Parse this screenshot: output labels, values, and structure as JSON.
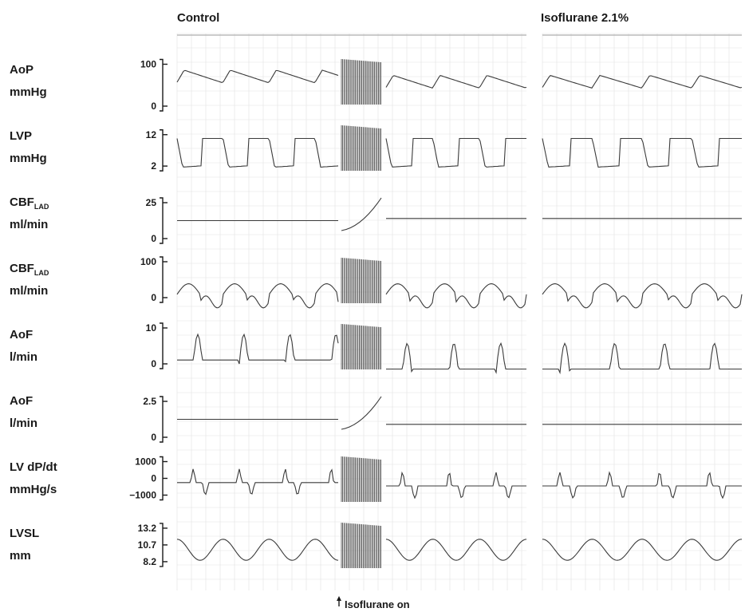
{
  "chart_data": {
    "type": "line",
    "panels": [
      {
        "title": "Control"
      },
      {
        "title": "Isoflurane 2.1%"
      }
    ],
    "annotation": "Isoflurane on",
    "channels": [
      {
        "label": "AoP",
        "subscript": "",
        "unit": "mmHg",
        "ticks": [
          "100",
          "0"
        ],
        "range": [
          0,
          120
        ],
        "control_level": 100,
        "iso_level": 75,
        "shape": "pressure"
      },
      {
        "label": "LVP",
        "subscript": "",
        "unit": "mmHg",
        "ticks": [
          "12",
          "2"
        ],
        "range": [
          0,
          16
        ],
        "control_level": 12,
        "iso_level": 12,
        "shape": "square"
      },
      {
        "label": "CBF",
        "subscript": "LAD",
        "unit": "ml/min",
        "ticks": [
          "25",
          "0"
        ],
        "range": [
          0,
          35
        ],
        "control_level": 25,
        "iso_level": 28,
        "shape": "flat"
      },
      {
        "label": "CBF",
        "subscript": "LAD",
        "unit": "ml/min",
        "ticks": [
          "100",
          "0"
        ],
        "range": [
          -20,
          120
        ],
        "control_level": 30,
        "iso_level": 30,
        "shape": "flow"
      },
      {
        "label": "AoF",
        "subscript": "",
        "unit": "l/min",
        "ticks": [
          "10",
          "0"
        ],
        "range": [
          -2,
          12
        ],
        "control_level": 10,
        "iso_level": 5,
        "shape": "spike"
      },
      {
        "label": "AoF",
        "subscript": "",
        "unit": "l/min",
        "ticks": [
          "2.5",
          "0"
        ],
        "range": [
          0,
          3.5
        ],
        "control_level": 2.5,
        "iso_level": 1.8,
        "shape": "flat"
      },
      {
        "label": "LV dP/dt",
        "subscript": "",
        "unit": "mmHg/s",
        "ticks": [
          "1000",
          "0",
          "−1000"
        ],
        "range": [
          -1500,
          1500
        ],
        "control_level": 1000,
        "iso_level": 600,
        "shape": "biphasic"
      },
      {
        "label": "LVSL",
        "subscript": "",
        "unit": "mm",
        "ticks": [
          "13.2",
          "10.7",
          "8.2"
        ],
        "range": [
          7,
          14.5
        ],
        "control_level": 12.5,
        "iso_level": 12.5,
        "shape": "wave"
      }
    ]
  }
}
